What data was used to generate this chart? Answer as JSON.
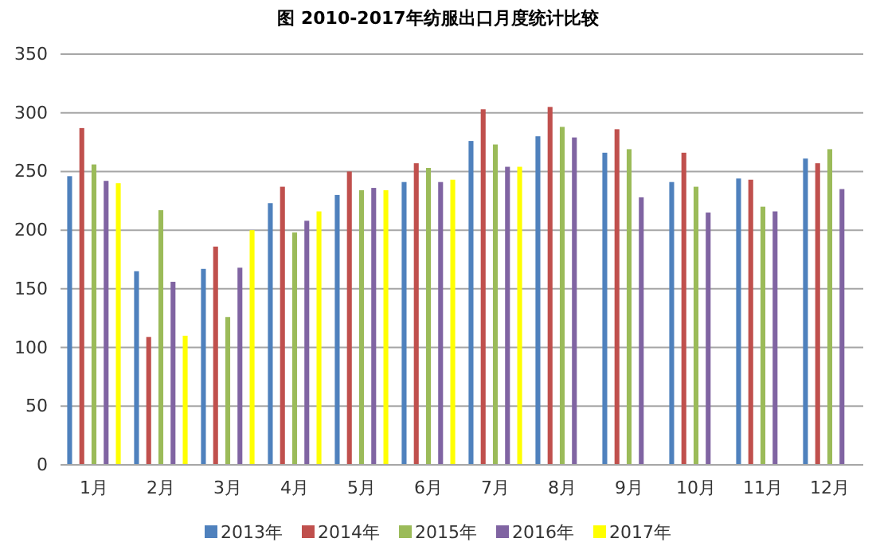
{
  "chart_data": {
    "type": "bar",
    "title": "图 2010-2017年纺服出口月度统计比较",
    "categories": [
      "1月",
      "2月",
      "3月",
      "4月",
      "5月",
      "6月",
      "7月",
      "8月",
      "9月",
      "10月",
      "11月",
      "12月"
    ],
    "series": [
      {
        "name": "2013年",
        "color": "#4f81bd",
        "values": [
          246,
          165,
          167,
          223,
          230,
          241,
          276,
          280,
          266,
          241,
          244,
          261
        ]
      },
      {
        "name": "2014年",
        "color": "#c0504d",
        "values": [
          287,
          109,
          186,
          237,
          250,
          257,
          303,
          305,
          286,
          266,
          243,
          257
        ]
      },
      {
        "name": "2015年",
        "color": "#9bbb59",
        "values": [
          256,
          217,
          126,
          198,
          234,
          253,
          273,
          288,
          269,
          237,
          220,
          269
        ]
      },
      {
        "name": "2016年",
        "color": "#8064a2",
        "values": [
          242,
          156,
          168,
          208,
          236,
          241,
          254,
          279,
          228,
          215,
          216,
          235
        ]
      },
      {
        "name": "2017年",
        "color": "#ffff00",
        "values": [
          240,
          110,
          200,
          216,
          234,
          243,
          254,
          null,
          null,
          null,
          null,
          null
        ]
      }
    ],
    "ylim": [
      0,
      350
    ],
    "yticks": [
      0,
      50,
      100,
      150,
      200,
      250,
      300,
      350
    ],
    "grid": "y",
    "legend": "bottom"
  }
}
